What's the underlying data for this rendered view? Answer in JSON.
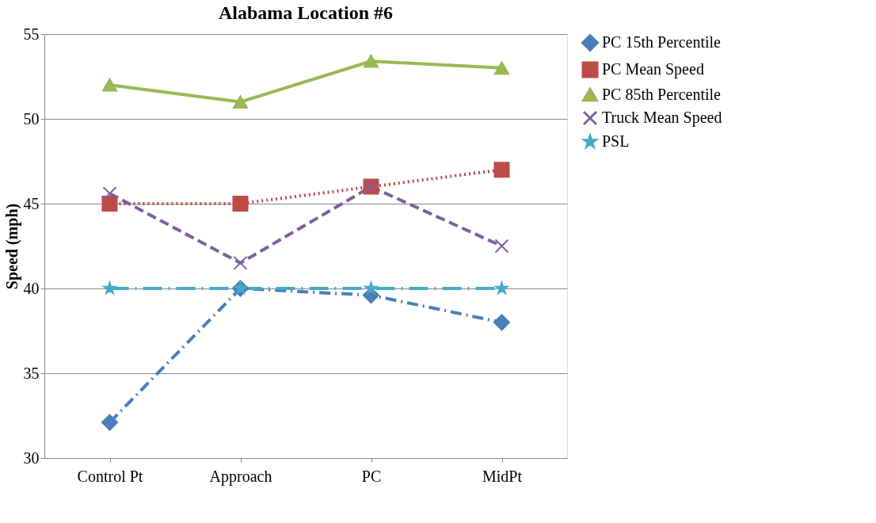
{
  "chart_data": {
    "type": "line",
    "title": "Alabama Location #6",
    "ylabel": "Speed (mph)",
    "categories": [
      "Control Pt",
      "Approach",
      "PC",
      "MidPt"
    ],
    "series": [
      {
        "name": "PC 15th Percentile",
        "color": "#4a7ebb",
        "values": [
          32.1,
          40,
          39.6,
          38
        ],
        "marker": "diamond",
        "line_style": "dashdot"
      },
      {
        "name": "PC Mean Speed",
        "color": "#be4b48",
        "values": [
          45,
          45,
          46,
          47
        ],
        "marker": "square",
        "line_style": "dotted"
      },
      {
        "name": "PC 85th Percentile",
        "color": "#98b954",
        "values": [
          52,
          51,
          53.4,
          53
        ],
        "marker": "triangle",
        "line_style": "solid"
      },
      {
        "name": "Truck Mean Speed",
        "color": "#7d60a0",
        "values": [
          45.6,
          41.5,
          46,
          42.5
        ],
        "marker": "cross",
        "line_style": "dashed"
      },
      {
        "name": "PSL",
        "color": "#46aac5",
        "values": [
          40,
          40,
          40,
          40
        ],
        "marker": "star",
        "line_style": "longdashdot"
      }
    ],
    "ylim": [
      30,
      55
    ],
    "yticks": [
      30,
      35,
      40,
      45,
      50,
      55
    ],
    "grid": "y",
    "legend": "right"
  }
}
